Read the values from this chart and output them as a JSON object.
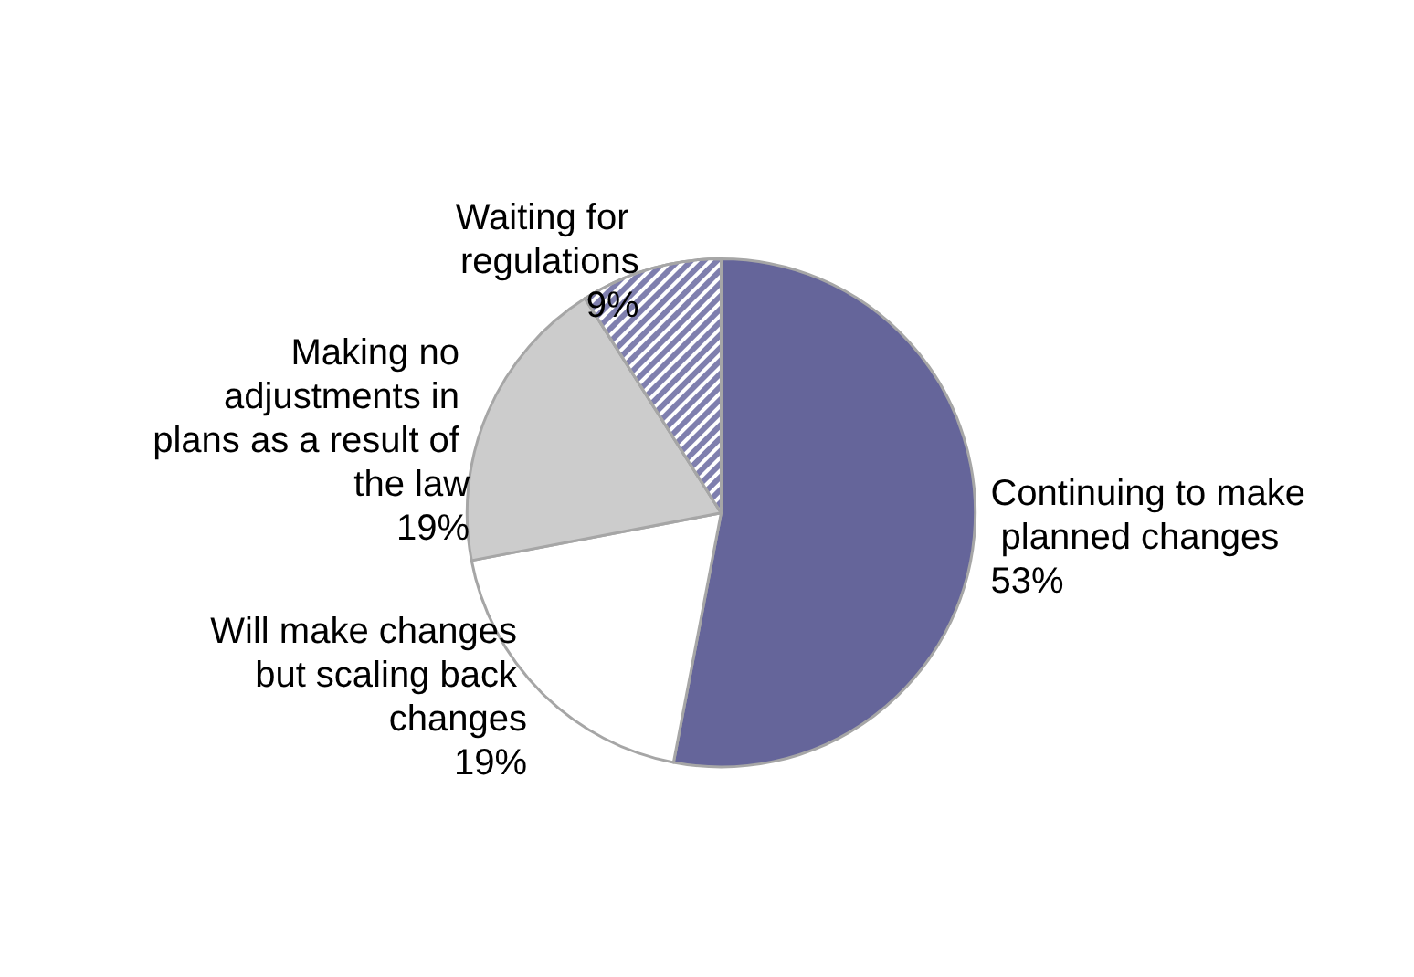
{
  "chart_data": {
    "type": "pie",
    "categories": [
      "Continuing to make planned changes",
      "Will make changes but scaling back changes",
      "Making no adjustments in plans as a result of the law",
      "Waiting for regulations"
    ],
    "values": [
      53,
      19,
      19,
      9
    ],
    "value_labels": [
      "53%",
      "19%",
      "19%",
      "9%"
    ],
    "colors": [
      "#65659a",
      "#ffffff",
      "#cccccc",
      "#7f7fae"
    ]
  }
}
